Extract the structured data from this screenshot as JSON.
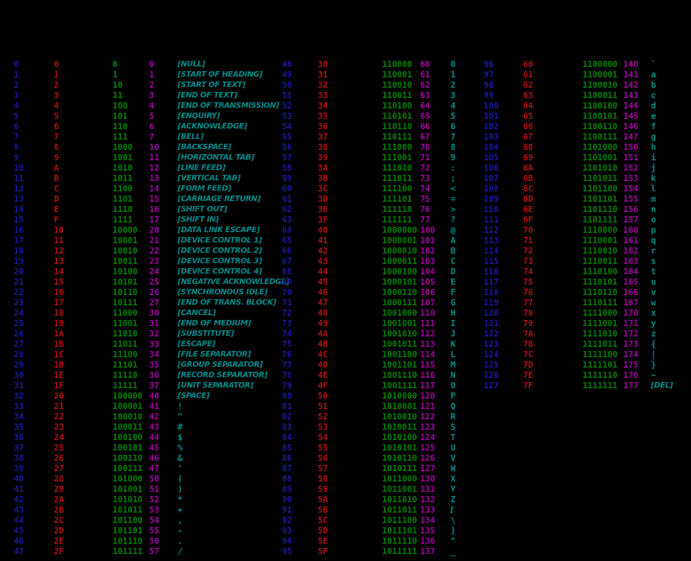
{
  "chart_data": {
    "type": "table",
    "background": "#000000",
    "columns": [
      {
        "key": "decimal",
        "color": "#18189e"
      },
      {
        "key": "hex",
        "color": "#b01010"
      },
      {
        "key": "binary",
        "color": "#008000"
      },
      {
        "key": "octal",
        "color": "#a000a0"
      },
      {
        "key": "char",
        "color": "#008b8b"
      }
    ],
    "groups": [
      {
        "name": "codes-0-47",
        "rows": [
          [
            "0",
            "0",
            "0",
            "0",
            "[NULL]"
          ],
          [
            "1",
            "1",
            "1",
            "1",
            "[START OF HEADING]"
          ],
          [
            "2",
            "2",
            "10",
            "2",
            "[START OF TEXT]"
          ],
          [
            "3",
            "3",
            "11",
            "3",
            "[END OF TEXT]"
          ],
          [
            "4",
            "4",
            "100",
            "4",
            "[END OF TRANSMISSION]"
          ],
          [
            "5",
            "5",
            "101",
            "5",
            "[ENQUIRY]"
          ],
          [
            "6",
            "6",
            "110",
            "6",
            "[ACKNOWLEDGE]"
          ],
          [
            "7",
            "7",
            "111",
            "7",
            "[BELL]"
          ],
          [
            "8",
            "8",
            "1000",
            "10",
            "[BACKSPACE]"
          ],
          [
            "9",
            "9",
            "1001",
            "11",
            "[HORIZONTAL TAB]"
          ],
          [
            "10",
            "A",
            "1010",
            "12",
            "[LINE FEED]"
          ],
          [
            "11",
            "B",
            "1011",
            "13",
            "[VERTICAL TAB]"
          ],
          [
            "12",
            "C",
            "1100",
            "14",
            "[FORM FEED]"
          ],
          [
            "13",
            "D",
            "1101",
            "15",
            "[CARRIAGE RETURN]"
          ],
          [
            "14",
            "E",
            "1110",
            "16",
            "[SHIFT OUT]"
          ],
          [
            "15",
            "F",
            "1111",
            "17",
            "[SHIFT IN]"
          ],
          [
            "16",
            "10",
            "10000",
            "20",
            "[DATA LINK ESCAPE]"
          ],
          [
            "17",
            "11",
            "10001",
            "21",
            "[DEVICE CONTROL 1]"
          ],
          [
            "18",
            "12",
            "10010",
            "22",
            "[DEVICE CONTROL 2]"
          ],
          [
            "19",
            "13",
            "10011",
            "23",
            "[DEVICE CONTROL 3]"
          ],
          [
            "20",
            "14",
            "10100",
            "24",
            "[DEVICE CONTROL 4]"
          ],
          [
            "21",
            "15",
            "10101",
            "25",
            "[NEGATIVE ACKNOWLEDGE]"
          ],
          [
            "22",
            "16",
            "10110",
            "26",
            "[SYNCHRONOUS IDLE]"
          ],
          [
            "23",
            "17",
            "10111",
            "27",
            "[END OF TRANS. BLOCK]"
          ],
          [
            "24",
            "18",
            "11000",
            "30",
            "[CANCEL]"
          ],
          [
            "25",
            "19",
            "11001",
            "31",
            "[END OF MEDIUM]"
          ],
          [
            "26",
            "1A",
            "11010",
            "32",
            "[SUBSTITUTE]"
          ],
          [
            "27",
            "1B",
            "11011",
            "33",
            "[ESCAPE]"
          ],
          [
            "28",
            "1C",
            "11100",
            "34",
            "[FILE SEPARATOR]"
          ],
          [
            "29",
            "1D",
            "11101",
            "35",
            "[GROUP SEPARATOR]"
          ],
          [
            "30",
            "1E",
            "11110",
            "36",
            "[RECORD SEPARATOR]"
          ],
          [
            "31",
            "1F",
            "11111",
            "37",
            "[UNIT SEPARATOR]"
          ],
          [
            "32",
            "20",
            "100000",
            "40",
            "[SPACE]"
          ],
          [
            "33",
            "21",
            "100001",
            "41",
            "!"
          ],
          [
            "34",
            "22",
            "100010",
            "42",
            "\""
          ],
          [
            "35",
            "23",
            "100011",
            "43",
            "#"
          ],
          [
            "36",
            "24",
            "100100",
            "44",
            "$"
          ],
          [
            "37",
            "25",
            "100101",
            "45",
            "%"
          ],
          [
            "38",
            "26",
            "100110",
            "46",
            "&"
          ],
          [
            "39",
            "27",
            "100111",
            "47",
            "'"
          ],
          [
            "40",
            "28",
            "101000",
            "50",
            "("
          ],
          [
            "41",
            "29",
            "101001",
            "51",
            ")"
          ],
          [
            "42",
            "2A",
            "101010",
            "52",
            "*"
          ],
          [
            "43",
            "2B",
            "101011",
            "53",
            "+"
          ],
          [
            "44",
            "2C",
            "101100",
            "54",
            ","
          ],
          [
            "45",
            "2D",
            "101101",
            "55",
            "-"
          ],
          [
            "46",
            "2E",
            "101110",
            "56",
            "."
          ],
          [
            "47",
            "2F",
            "101111",
            "57",
            "/"
          ]
        ]
      },
      {
        "name": "codes-48-95",
        "rows": [
          [
            "48",
            "30",
            "110000",
            "60",
            "0"
          ],
          [
            "49",
            "31",
            "110001",
            "61",
            "1"
          ],
          [
            "50",
            "32",
            "110010",
            "62",
            "2"
          ],
          [
            "51",
            "33",
            "110011",
            "63",
            "3"
          ],
          [
            "52",
            "34",
            "110100",
            "64",
            "4"
          ],
          [
            "53",
            "35",
            "110101",
            "65",
            "5"
          ],
          [
            "54",
            "36",
            "110110",
            "66",
            "6"
          ],
          [
            "55",
            "37",
            "110111",
            "67",
            "7"
          ],
          [
            "56",
            "38",
            "111000",
            "70",
            "8"
          ],
          [
            "57",
            "39",
            "111001",
            "71",
            "9"
          ],
          [
            "58",
            "3A",
            "111010",
            "72",
            ":"
          ],
          [
            "59",
            "3B",
            "111011",
            "73",
            ";"
          ],
          [
            "60",
            "3C",
            "111100",
            "74",
            "<"
          ],
          [
            "61",
            "3D",
            "111101",
            "75",
            "="
          ],
          [
            "62",
            "3E",
            "111110",
            "76",
            ">"
          ],
          [
            "63",
            "3F",
            "111111",
            "77",
            "?"
          ],
          [
            "64",
            "40",
            "1000000",
            "100",
            "@"
          ],
          [
            "65",
            "41",
            "1000001",
            "101",
            "A"
          ],
          [
            "66",
            "42",
            "1000010",
            "102",
            "B"
          ],
          [
            "67",
            "43",
            "1000011",
            "103",
            "C"
          ],
          [
            "68",
            "44",
            "1000100",
            "104",
            "D"
          ],
          [
            "69",
            "45",
            "1000101",
            "105",
            "E"
          ],
          [
            "70",
            "46",
            "1000110",
            "106",
            "F"
          ],
          [
            "71",
            "47",
            "1000111",
            "107",
            "G"
          ],
          [
            "72",
            "48",
            "1001000",
            "110",
            "H"
          ],
          [
            "73",
            "49",
            "1001001",
            "111",
            "I"
          ],
          [
            "74",
            "4A",
            "1001010",
            "112",
            "J"
          ],
          [
            "75",
            "4B",
            "1001011",
            "113",
            "K"
          ],
          [
            "76",
            "4C",
            "1001100",
            "114",
            "L"
          ],
          [
            "77",
            "4D",
            "1001101",
            "115",
            "M"
          ],
          [
            "78",
            "4E",
            "1001110",
            "116",
            "N"
          ],
          [
            "79",
            "4F",
            "1001111",
            "117",
            "O"
          ],
          [
            "80",
            "50",
            "1010000",
            "120",
            "P"
          ],
          [
            "81",
            "51",
            "1010001",
            "121",
            "Q"
          ],
          [
            "82",
            "52",
            "1010010",
            "122",
            "R"
          ],
          [
            "83",
            "53",
            "1010011",
            "123",
            "S"
          ],
          [
            "84",
            "54",
            "1010100",
            "124",
            "T"
          ],
          [
            "85",
            "55",
            "1010101",
            "125",
            "U"
          ],
          [
            "86",
            "56",
            "1010110",
            "126",
            "V"
          ],
          [
            "87",
            "57",
            "1010111",
            "127",
            "W"
          ],
          [
            "88",
            "58",
            "1011000",
            "130",
            "X"
          ],
          [
            "89",
            "59",
            "1011001",
            "131",
            "Y"
          ],
          [
            "90",
            "5A",
            "1011010",
            "132",
            "Z"
          ],
          [
            "91",
            "5B",
            "1011011",
            "133",
            "["
          ],
          [
            "92",
            "5C",
            "1011100",
            "134",
            "\\"
          ],
          [
            "93",
            "5D",
            "1011101",
            "135",
            "]"
          ],
          [
            "94",
            "5E",
            "1011110",
            "136",
            "^"
          ],
          [
            "95",
            "5F",
            "1011111",
            "137",
            "_"
          ]
        ]
      },
      {
        "name": "codes-96-127",
        "rows": [
          [
            "96",
            "60",
            "1100000",
            "140",
            "`"
          ],
          [
            "97",
            "61",
            "1100001",
            "141",
            "a"
          ],
          [
            "98",
            "62",
            "1100010",
            "142",
            "b"
          ],
          [
            "99",
            "63",
            "1100011",
            "143",
            "c"
          ],
          [
            "100",
            "64",
            "1100100",
            "144",
            "d"
          ],
          [
            "101",
            "65",
            "1100101",
            "145",
            "e"
          ],
          [
            "102",
            "66",
            "1100110",
            "146",
            "f"
          ],
          [
            "103",
            "67",
            "1100111",
            "147",
            "g"
          ],
          [
            "104",
            "68",
            "1101000",
            "150",
            "h"
          ],
          [
            "105",
            "69",
            "1101001",
            "151",
            "i"
          ],
          [
            "106",
            "6A",
            "1101010",
            "152",
            "j"
          ],
          [
            "107",
            "6B",
            "1101011",
            "153",
            "k"
          ],
          [
            "108",
            "6C",
            "1101100",
            "154",
            "l"
          ],
          [
            "109",
            "6D",
            "1101101",
            "155",
            "m"
          ],
          [
            "110",
            "6E",
            "1101110",
            "156",
            "n"
          ],
          [
            "111",
            "6F",
            "1101111",
            "157",
            "o"
          ],
          [
            "112",
            "70",
            "1110000",
            "160",
            "p"
          ],
          [
            "113",
            "71",
            "1110001",
            "161",
            "q"
          ],
          [
            "114",
            "72",
            "1110010",
            "162",
            "r"
          ],
          [
            "115",
            "73",
            "1110011",
            "163",
            "s"
          ],
          [
            "116",
            "74",
            "1110100",
            "164",
            "t"
          ],
          [
            "117",
            "75",
            "1110101",
            "165",
            "u"
          ],
          [
            "118",
            "76",
            "1110110",
            "166",
            "v"
          ],
          [
            "119",
            "77",
            "1110111",
            "167",
            "w"
          ],
          [
            "120",
            "78",
            "1111000",
            "170",
            "x"
          ],
          [
            "121",
            "79",
            "1111001",
            "171",
            "y"
          ],
          [
            "122",
            "7A",
            "1111010",
            "172",
            "z"
          ],
          [
            "123",
            "7B",
            "1111011",
            "173",
            "{"
          ],
          [
            "124",
            "7C",
            "1111100",
            "174",
            "|"
          ],
          [
            "125",
            "7D",
            "1111101",
            "175",
            "}"
          ],
          [
            "126",
            "7E",
            "1111110",
            "176",
            "~"
          ],
          [
            "127",
            "7F",
            "1111111",
            "177",
            "[DEL]"
          ]
        ]
      }
    ]
  }
}
